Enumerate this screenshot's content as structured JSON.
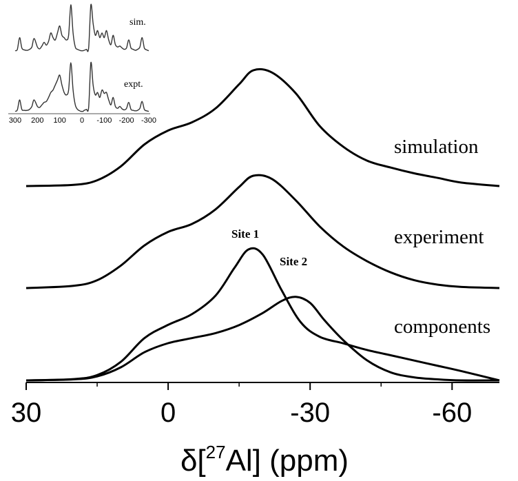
{
  "chart_data": {
    "type": "line",
    "xlabel_prefix": "δ[",
    "xlabel_sup": "27",
    "xlabel_suffix": "Al] (ppm)",
    "xlim": [
      30,
      -70
    ],
    "x_ticks": [
      "30",
      "0",
      "-30",
      "-60"
    ],
    "x_tick_values": [
      30,
      0,
      -30,
      -60
    ],
    "traces": [
      {
        "name": "simulation",
        "x": [
          30,
          20,
          15,
          10,
          5,
          0,
          -5,
          -10,
          -15,
          -18,
          -22,
          -27,
          -32,
          -37,
          -42,
          -47,
          -52,
          -57,
          -62,
          -70
        ],
        "height": [
          0.0,
          0.01,
          0.05,
          0.17,
          0.36,
          0.48,
          0.55,
          0.67,
          0.88,
          1.0,
          0.98,
          0.8,
          0.52,
          0.34,
          0.22,
          0.16,
          0.11,
          0.07,
          0.03,
          0.0
        ]
      },
      {
        "name": "experiment",
        "x": [
          30,
          20,
          15,
          10,
          5,
          0,
          -5,
          -10,
          -15,
          -18,
          -22,
          -27,
          -32,
          -37,
          -42,
          -47,
          -52,
          -57,
          -62,
          -70
        ],
        "height": [
          0.0,
          0.02,
          0.07,
          0.2,
          0.38,
          0.5,
          0.57,
          0.7,
          0.9,
          1.0,
          0.97,
          0.78,
          0.55,
          0.37,
          0.24,
          0.14,
          0.07,
          0.03,
          0.01,
          0.0
        ]
      },
      {
        "name": "Site 1",
        "x": [
          30,
          20,
          15,
          10,
          5,
          0,
          -5,
          -10,
          -14,
          -17,
          -20,
          -24,
          -28,
          -32,
          -37,
          -42,
          -47,
          -52,
          -57,
          -62,
          -70
        ],
        "height": [
          0.0,
          0.01,
          0.04,
          0.14,
          0.32,
          0.42,
          0.5,
          0.64,
          0.85,
          0.99,
          0.95,
          0.68,
          0.44,
          0.33,
          0.28,
          0.23,
          0.19,
          0.15,
          0.11,
          0.07,
          0.0
        ]
      },
      {
        "name": "Site 2",
        "x": [
          30,
          20,
          15,
          10,
          5,
          0,
          -5,
          -10,
          -15,
          -20,
          -24,
          -27,
          -30,
          -33,
          -37,
          -42,
          -47,
          -52,
          -57,
          -62,
          -70
        ],
        "height": [
          0.0,
          0.01,
          0.04,
          0.13,
          0.28,
          0.37,
          0.42,
          0.47,
          0.55,
          0.67,
          0.79,
          0.83,
          0.77,
          0.6,
          0.4,
          0.2,
          0.08,
          0.03,
          0.01,
          0.0,
          0.0
        ]
      }
    ],
    "labels": {
      "simulation": "simulation",
      "experiment": "experiment",
      "components": "components",
      "site1": "Site 1",
      "site2": "Site 2"
    },
    "inset": {
      "type": "line",
      "xlim": [
        300,
        -300
      ],
      "x_ticks": [
        "300",
        "200",
        "100",
        "0",
        "-100",
        "-200",
        "-300"
      ],
      "x_tick_values": [
        300,
        200,
        100,
        0,
        -100,
        -200,
        -300
      ],
      "sim_label": "sim.",
      "expt_label": "expt.",
      "sim": {
        "x": [
          300,
          290,
          280,
          270,
          260,
          245,
          235,
          225,
          215,
          200,
          190,
          180,
          170,
          160,
          150,
          140,
          130,
          120,
          110,
          100,
          90,
          80,
          70,
          60,
          50,
          40,
          30,
          20,
          10,
          5,
          0,
          -5,
          -10,
          -20,
          -30,
          -40,
          -50,
          -60,
          -70,
          -80,
          -90,
          -100,
          -110,
          -120,
          -130,
          -140,
          -150,
          -160,
          -170,
          -180,
          -190,
          -200,
          -210,
          -220,
          -230,
          -240,
          -250,
          -260,
          -270,
          -280,
          -290,
          -300
        ],
        "height": [
          0.02,
          0.05,
          0.3,
          0.08,
          0.04,
          0.03,
          0.05,
          0.1,
          0.28,
          0.1,
          0.06,
          0.12,
          0.2,
          0.14,
          0.22,
          0.4,
          0.3,
          0.25,
          0.4,
          0.55,
          0.35,
          0.3,
          0.25,
          0.35,
          1.0,
          0.4,
          0.1,
          0.05,
          0.03,
          0.02,
          0.02,
          0.02,
          0.03,
          0.05,
          0.08,
          1.0,
          0.6,
          0.35,
          0.45,
          0.3,
          0.4,
          0.3,
          0.45,
          0.25,
          0.15,
          0.35,
          0.15,
          0.1,
          0.12,
          0.08,
          0.05,
          0.08,
          0.25,
          0.08,
          0.05,
          0.03,
          0.05,
          0.1,
          0.3,
          0.08,
          0.04,
          0.02
        ]
      },
      "expt": {
        "x": [
          300,
          290,
          280,
          270,
          260,
          245,
          235,
          225,
          215,
          200,
          190,
          180,
          170,
          160,
          150,
          140,
          130,
          120,
          110,
          100,
          90,
          80,
          70,
          60,
          50,
          40,
          30,
          20,
          10,
          5,
          0,
          -5,
          -10,
          -20,
          -30,
          -40,
          -50,
          -60,
          -70,
          -80,
          -90,
          -100,
          -110,
          -120,
          -130,
          -140,
          -150,
          -160,
          -170,
          -180,
          -190,
          -200,
          -210,
          -220,
          -230,
          -240,
          -250,
          -260,
          -270,
          -280,
          -290,
          -300
        ],
        "height": [
          0.02,
          0.05,
          0.25,
          0.06,
          0.04,
          0.04,
          0.06,
          0.12,
          0.25,
          0.12,
          0.1,
          0.15,
          0.2,
          0.22,
          0.3,
          0.4,
          0.45,
          0.55,
          0.65,
          0.75,
          0.55,
          0.4,
          0.35,
          0.45,
          1.0,
          0.45,
          0.15,
          0.06,
          0.03,
          0.02,
          0.02,
          0.02,
          0.04,
          0.06,
          0.1,
          1.0,
          0.55,
          0.35,
          0.4,
          0.3,
          0.45,
          0.38,
          0.4,
          0.25,
          0.15,
          0.3,
          0.12,
          0.08,
          0.12,
          0.07,
          0.05,
          0.08,
          0.2,
          0.06,
          0.04,
          0.03,
          0.04,
          0.08,
          0.22,
          0.06,
          0.03,
          0.02
        ]
      }
    }
  }
}
